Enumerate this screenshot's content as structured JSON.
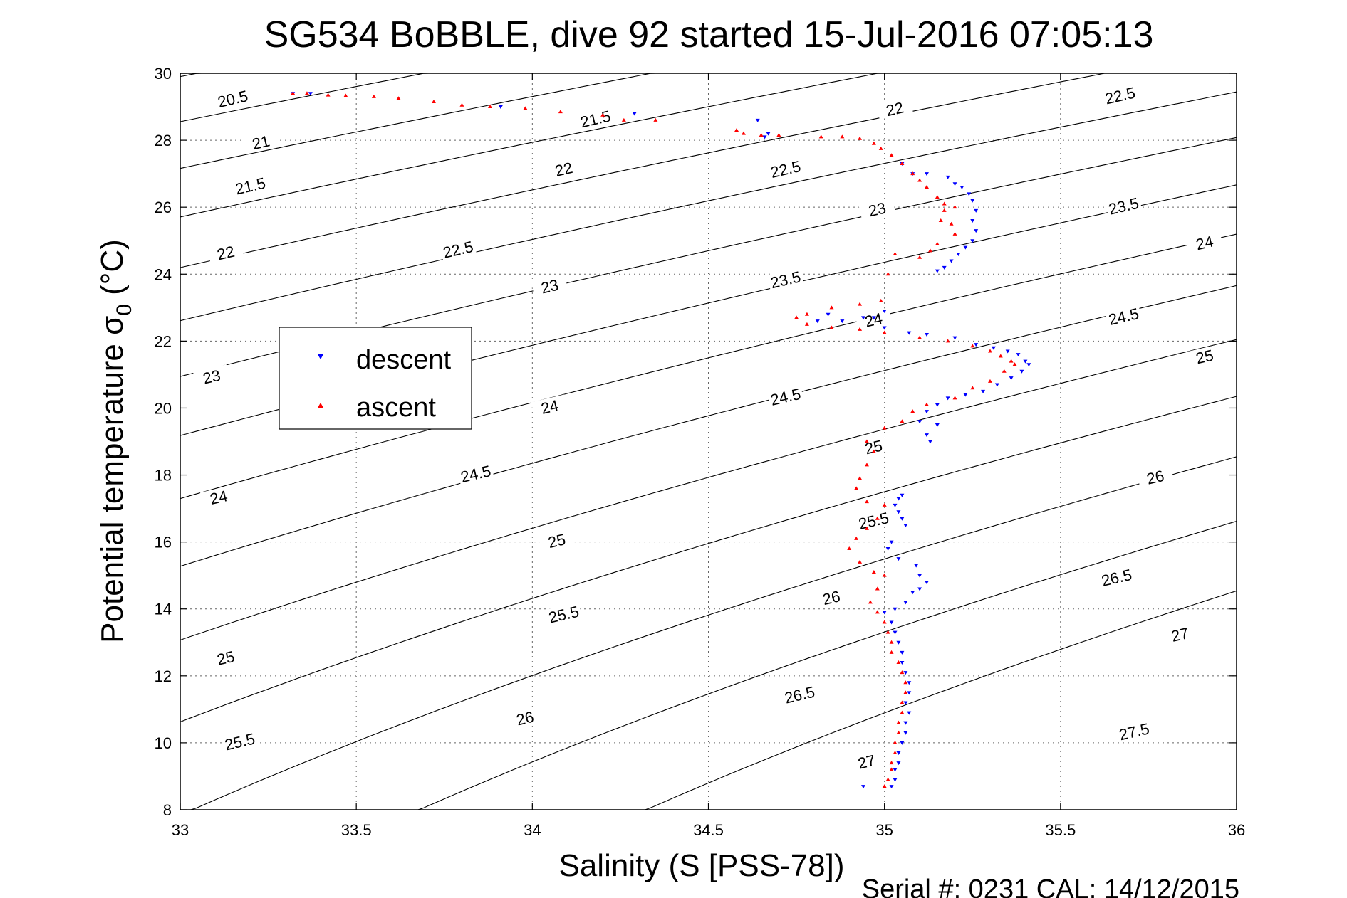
{
  "chart_data": {
    "type": "scatter",
    "title": "SG534 BoBBLE, dive 92 started 15-Jul-2016 07:05:13",
    "xlabel": "Salinity (S [PSS-78])",
    "ylabel_main": "Potential temperature σ",
    "ylabel_sub": "0",
    "ylabel_unit": " (°C)",
    "footer": "Serial #: 0231  CAL: 14/12/2015",
    "xlim": [
      33,
      36
    ],
    "ylim": [
      8,
      30
    ],
    "xticks": [
      "33",
      "33.5",
      "34",
      "34.5",
      "35",
      "35.5",
      "36"
    ],
    "yticks": [
      "8",
      "10",
      "12",
      "14",
      "16",
      "18",
      "20",
      "22",
      "24",
      "26",
      "28",
      "30"
    ],
    "grid": true,
    "legend_position": "left",
    "contour_levels": [
      20.5,
      21,
      21.5,
      22,
      22.5,
      23,
      23.5,
      24,
      24.5,
      25,
      25.5,
      26,
      26.5,
      27,
      27.5
    ],
    "contour_labels": [
      {
        "text": "20.5",
        "s": 33.15,
        "t": 29.2,
        "angle": -13
      },
      {
        "text": "21",
        "s": 33.23,
        "t": 27.9,
        "angle": -13
      },
      {
        "text": "21.5",
        "s": 33.2,
        "t": 26.6,
        "angle": -13
      },
      {
        "text": "22",
        "s": 33.13,
        "t": 24.6,
        "angle": -13
      },
      {
        "text": "23",
        "s": 33.09,
        "t": 20.9,
        "angle": -13
      },
      {
        "text": "24",
        "s": 33.11,
        "t": 17.3,
        "angle": -13
      },
      {
        "text": "25",
        "s": 33.13,
        "t": 12.5,
        "angle": -13
      },
      {
        "text": "25.5",
        "s": 33.17,
        "t": 10.0,
        "angle": -13
      },
      {
        "text": "21.5",
        "s": 34.18,
        "t": 28.6,
        "angle": -13
      },
      {
        "text": "22",
        "s": 34.09,
        "t": 27.1,
        "angle": -13
      },
      {
        "text": "22.5",
        "s": 33.79,
        "t": 24.7,
        "angle": -13
      },
      {
        "text": "23",
        "s": 34.05,
        "t": 23.6,
        "angle": -13
      },
      {
        "text": "24",
        "s": 34.05,
        "t": 20.0,
        "angle": -13
      },
      {
        "text": "24.5",
        "s": 33.84,
        "t": 18.0,
        "angle": -13
      },
      {
        "text": "25",
        "s": 34.07,
        "t": 16.0,
        "angle": -13
      },
      {
        "text": "25.5",
        "s": 34.09,
        "t": 13.8,
        "angle": -13
      },
      {
        "text": "26",
        "s": 33.98,
        "t": 10.7,
        "angle": -13
      },
      {
        "text": "22",
        "s": 35.03,
        "t": 28.9,
        "angle": -13
      },
      {
        "text": "22.5",
        "s": 34.72,
        "t": 27.1,
        "angle": -13
      },
      {
        "text": "23",
        "s": 34.98,
        "t": 25.9,
        "angle": -13
      },
      {
        "text": "23.5",
        "s": 34.72,
        "t": 23.8,
        "angle": -13
      },
      {
        "text": "24",
        "s": 34.97,
        "t": 22.6,
        "angle": -13
      },
      {
        "text": "24.5",
        "s": 34.72,
        "t": 20.3,
        "angle": -13
      },
      {
        "text": "25",
        "s": 34.97,
        "t": 18.8,
        "angle": -13
      },
      {
        "text": "25.5",
        "s": 34.97,
        "t": 16.6,
        "angle": -13
      },
      {
        "text": "26",
        "s": 34.85,
        "t": 14.3,
        "angle": -13
      },
      {
        "text": "26.5",
        "s": 34.76,
        "t": 11.4,
        "angle": -13
      },
      {
        "text": "27",
        "s": 34.95,
        "t": 9.4,
        "angle": -13
      },
      {
        "text": "22.5",
        "s": 35.67,
        "t": 29.3,
        "angle": -13
      },
      {
        "text": "23.5",
        "s": 35.68,
        "t": 26.0,
        "angle": -13
      },
      {
        "text": "24",
        "s": 35.91,
        "t": 24.9,
        "angle": -13
      },
      {
        "text": "24.5",
        "s": 35.68,
        "t": 22.7,
        "angle": -13
      },
      {
        "text": "25",
        "s": 35.91,
        "t": 21.5,
        "angle": -13
      },
      {
        "text": "26",
        "s": 35.77,
        "t": 17.9,
        "angle": -13
      },
      {
        "text": "26.5",
        "s": 35.66,
        "t": 14.9,
        "angle": -13
      },
      {
        "text": "27",
        "s": 35.84,
        "t": 13.2,
        "angle": -13
      },
      {
        "text": "27.5",
        "s": 35.71,
        "t": 10.3,
        "angle": -13
      }
    ],
    "series": [
      {
        "name": "descent",
        "color": "#0000ff",
        "marker": "triangle-down",
        "points": [
          [
            33.32,
            29.4
          ],
          [
            33.37,
            29.4
          ],
          [
            33.91,
            29.0
          ],
          [
            34.29,
            28.8
          ],
          [
            34.66,
            28.1
          ],
          [
            34.67,
            28.2
          ],
          [
            34.64,
            28.6
          ],
          [
            35.05,
            27.3
          ],
          [
            35.08,
            27.0
          ],
          [
            35.12,
            27.0
          ],
          [
            35.18,
            26.9
          ],
          [
            35.2,
            26.7
          ],
          [
            35.22,
            26.6
          ],
          [
            35.24,
            26.4
          ],
          [
            35.25,
            26.2
          ],
          [
            35.26,
            25.9
          ],
          [
            35.25,
            25.6
          ],
          [
            35.26,
            25.3
          ],
          [
            35.25,
            25.0
          ],
          [
            35.23,
            24.8
          ],
          [
            35.21,
            24.6
          ],
          [
            35.19,
            24.4
          ],
          [
            35.17,
            24.2
          ],
          [
            35.15,
            24.1
          ],
          [
            35.0,
            22.9
          ],
          [
            34.97,
            22.7
          ],
          [
            34.94,
            22.7
          ],
          [
            34.88,
            22.6
          ],
          [
            34.84,
            22.8
          ],
          [
            34.81,
            22.6
          ],
          [
            35.0,
            22.4
          ],
          [
            35.07,
            22.25
          ],
          [
            35.12,
            22.2
          ],
          [
            35.2,
            22.1
          ],
          [
            35.26,
            21.9
          ],
          [
            35.31,
            21.8
          ],
          [
            35.35,
            21.7
          ],
          [
            35.38,
            21.6
          ],
          [
            35.4,
            21.4
          ],
          [
            35.41,
            21.3
          ],
          [
            35.39,
            21.1
          ],
          [
            35.36,
            20.9
          ],
          [
            35.32,
            20.7
          ],
          [
            35.28,
            20.5
          ],
          [
            35.23,
            20.4
          ],
          [
            35.18,
            20.3
          ],
          [
            35.15,
            20.1
          ],
          [
            35.12,
            19.9
          ],
          [
            35.1,
            19.6
          ],
          [
            35.12,
            19.2
          ],
          [
            35.15,
            19.5
          ],
          [
            35.13,
            19.0
          ],
          [
            35.05,
            17.4
          ],
          [
            35.04,
            17.3
          ],
          [
            35.03,
            17.1
          ],
          [
            35.04,
            16.9
          ],
          [
            35.05,
            16.7
          ],
          [
            35.06,
            16.5
          ],
          [
            35.02,
            16.0
          ],
          [
            35.01,
            15.8
          ],
          [
            35.04,
            15.5
          ],
          [
            35.09,
            15.3
          ],
          [
            35.1,
            15.0
          ],
          [
            35.12,
            14.8
          ],
          [
            35.1,
            14.6
          ],
          [
            35.08,
            14.5
          ],
          [
            35.06,
            14.2
          ],
          [
            35.03,
            14.0
          ],
          [
            35.0,
            13.9
          ],
          [
            35.02,
            13.6
          ],
          [
            35.03,
            13.3
          ],
          [
            35.04,
            13.0
          ],
          [
            35.05,
            12.7
          ],
          [
            35.05,
            12.4
          ],
          [
            35.06,
            12.1
          ],
          [
            35.07,
            11.8
          ],
          [
            35.07,
            11.5
          ],
          [
            35.06,
            11.2
          ],
          [
            35.07,
            10.9
          ],
          [
            35.06,
            10.6
          ],
          [
            35.06,
            10.3
          ],
          [
            35.05,
            10.0
          ],
          [
            35.04,
            9.7
          ],
          [
            35.04,
            9.4
          ],
          [
            35.03,
            9.2
          ],
          [
            35.03,
            8.9
          ],
          [
            35.02,
            8.7
          ],
          [
            34.94,
            8.7
          ]
        ]
      },
      {
        "name": "ascent",
        "color": "#ff0000",
        "marker": "triangle-up",
        "points": [
          [
            33.32,
            29.4
          ],
          [
            33.36,
            29.4
          ],
          [
            33.42,
            29.35
          ],
          [
            33.47,
            29.33
          ],
          [
            33.55,
            29.3
          ],
          [
            33.62,
            29.25
          ],
          [
            33.72,
            29.15
          ],
          [
            33.8,
            29.05
          ],
          [
            33.88,
            29.0
          ],
          [
            33.98,
            28.95
          ],
          [
            34.08,
            28.85
          ],
          [
            34.2,
            28.75
          ],
          [
            34.26,
            28.6
          ],
          [
            34.35,
            28.6
          ],
          [
            34.58,
            28.3
          ],
          [
            34.6,
            28.2
          ],
          [
            34.65,
            28.15
          ],
          [
            34.7,
            28.15
          ],
          [
            34.82,
            28.1
          ],
          [
            34.88,
            28.1
          ],
          [
            34.93,
            28.05
          ],
          [
            34.97,
            27.9
          ],
          [
            34.99,
            27.75
          ],
          [
            35.02,
            27.55
          ],
          [
            35.05,
            27.3
          ],
          [
            35.08,
            27.0
          ],
          [
            35.1,
            26.8
          ],
          [
            35.12,
            26.6
          ],
          [
            35.15,
            26.3
          ],
          [
            35.17,
            26.1
          ],
          [
            35.2,
            26.0
          ],
          [
            35.17,
            25.9
          ],
          [
            35.16,
            25.6
          ],
          [
            35.19,
            25.5
          ],
          [
            35.2,
            25.2
          ],
          [
            35.15,
            24.9
          ],
          [
            35.13,
            24.7
          ],
          [
            35.1,
            24.5
          ],
          [
            35.03,
            24.6
          ],
          [
            35.01,
            24.0
          ],
          [
            34.99,
            23.2
          ],
          [
            34.93,
            23.1
          ],
          [
            34.85,
            23.0
          ],
          [
            34.78,
            22.8
          ],
          [
            34.75,
            22.7
          ],
          [
            34.78,
            22.5
          ],
          [
            34.85,
            22.4
          ],
          [
            34.93,
            22.35
          ],
          [
            35.0,
            22.25
          ],
          [
            35.1,
            22.1
          ],
          [
            35.18,
            22.0
          ],
          [
            35.25,
            21.85
          ],
          [
            35.3,
            21.7
          ],
          [
            35.33,
            21.55
          ],
          [
            35.36,
            21.4
          ],
          [
            35.37,
            21.3
          ],
          [
            35.34,
            21.1
          ],
          [
            35.3,
            20.8
          ],
          [
            35.25,
            20.6
          ],
          [
            35.2,
            20.3
          ],
          [
            35.12,
            20.1
          ],
          [
            35.08,
            19.9
          ],
          [
            35.05,
            19.6
          ],
          [
            35.0,
            19.4
          ],
          [
            34.95,
            19.0
          ],
          [
            34.97,
            18.7
          ],
          [
            34.95,
            18.3
          ],
          [
            34.93,
            17.9
          ],
          [
            34.92,
            17.6
          ],
          [
            34.95,
            17.2
          ],
          [
            35.0,
            17.1
          ],
          [
            34.98,
            16.7
          ],
          [
            34.95,
            16.4
          ],
          [
            34.92,
            16.1
          ],
          [
            34.9,
            15.8
          ],
          [
            34.93,
            15.4
          ],
          [
            34.97,
            15.1
          ],
          [
            35.0,
            15.0
          ],
          [
            34.98,
            14.6
          ],
          [
            34.96,
            14.2
          ],
          [
            34.98,
            13.9
          ],
          [
            35.0,
            13.6
          ],
          [
            35.01,
            13.3
          ],
          [
            35.02,
            13.0
          ],
          [
            35.02,
            12.7
          ],
          [
            35.04,
            12.4
          ],
          [
            35.05,
            12.1
          ],
          [
            35.06,
            11.8
          ],
          [
            35.06,
            11.5
          ],
          [
            35.05,
            11.2
          ],
          [
            35.05,
            10.9
          ],
          [
            35.04,
            10.6
          ],
          [
            35.04,
            10.3
          ],
          [
            35.03,
            10.0
          ],
          [
            35.03,
            9.7
          ],
          [
            35.02,
            9.4
          ],
          [
            35.02,
            9.2
          ],
          [
            35.01,
            8.9
          ],
          [
            35.0,
            8.7
          ]
        ]
      }
    ]
  }
}
